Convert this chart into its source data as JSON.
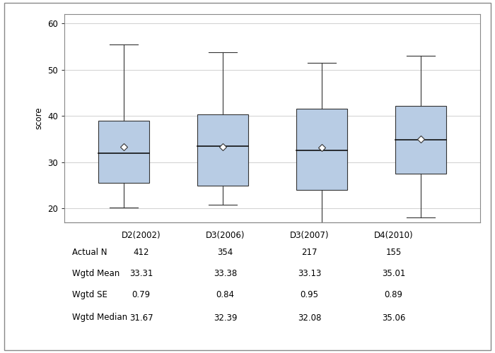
{
  "ylabel": "score",
  "ylim": [
    17,
    62
  ],
  "yticks": [
    20,
    30,
    40,
    50,
    60
  ],
  "categories": [
    "D2(2002)",
    "D3(2006)",
    "D3(2007)",
    "D4(2010)"
  ],
  "box_color": "#b8cce4",
  "box_edge_color": "#333333",
  "whisker_color": "#333333",
  "median_color": "#111111",
  "mean_marker_color": "white",
  "mean_marker_edge": "#333333",
  "boxes": [
    {
      "q1": 25.5,
      "median": 32.0,
      "q3": 39.0,
      "whisker_low": 20.2,
      "whisker_high": 55.5,
      "mean": 33.31
    },
    {
      "q1": 25.0,
      "median": 33.5,
      "q3": 40.3,
      "whisker_low": 20.8,
      "whisker_high": 53.8,
      "mean": 33.38
    },
    {
      "q1": 24.0,
      "median": 32.5,
      "q3": 41.5,
      "whisker_low": 15.0,
      "whisker_high": 51.5,
      "mean": 33.13
    },
    {
      "q1": 27.5,
      "median": 34.8,
      "q3": 42.2,
      "whisker_low": 18.0,
      "whisker_high": 53.0,
      "mean": 35.01
    }
  ],
  "table_rows": [
    {
      "label": "Actual N",
      "values": [
        "412",
        "354",
        "217",
        "155"
      ]
    },
    {
      "label": "Wgtd Mean",
      "values": [
        "33.31",
        "33.38",
        "33.13",
        "35.01"
      ]
    },
    {
      "label": "Wgtd SE",
      "values": [
        "0.79",
        "0.84",
        "0.95",
        "0.89"
      ]
    },
    {
      "label": "Wgtd Median",
      "values": [
        "31.67",
        "32.39",
        "32.08",
        "35.06"
      ]
    }
  ],
  "background_color": "#ffffff",
  "plot_bg_color": "#ffffff",
  "grid_color": "#d0d0d0",
  "box_width": 0.52,
  "font_size": 8.5,
  "outer_border_color": "#888888",
  "plot_border_color": "#888888"
}
